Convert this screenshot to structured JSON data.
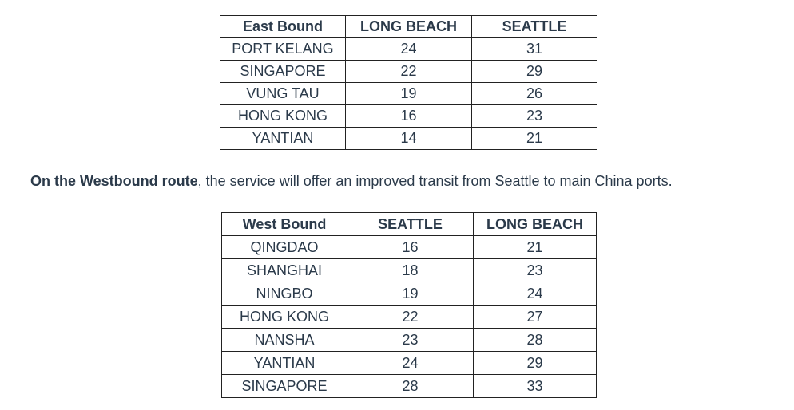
{
  "east": {
    "headers": [
      "East Bound",
      "LONG BEACH",
      "SEATTLE"
    ],
    "rows": [
      [
        "PORT KELANG",
        "24",
        "31"
      ],
      [
        "SINGAPORE",
        "22",
        "29"
      ],
      [
        "VUNG TAU",
        "19",
        "26"
      ],
      [
        "HONG KONG",
        "16",
        "23"
      ],
      [
        "YANTIAN",
        "14",
        "21"
      ]
    ]
  },
  "sentence": {
    "bold": "On the Westbound route",
    "rest": ", the service will offer an improved transit from Seattle to main China ports."
  },
  "west": {
    "headers": [
      "West Bound",
      "SEATTLE",
      "LONG BEACH"
    ],
    "rows": [
      [
        "QINGDAO",
        "16",
        "21"
      ],
      [
        "SHANGHAI",
        "18",
        "23"
      ],
      [
        "NINGBO",
        "19",
        "24"
      ],
      [
        "HONG KONG",
        "22",
        "27"
      ],
      [
        "NANSHA",
        "23",
        "28"
      ],
      [
        "YANTIAN",
        "24",
        "29"
      ],
      [
        "SINGAPORE",
        "28",
        "33"
      ]
    ]
  }
}
